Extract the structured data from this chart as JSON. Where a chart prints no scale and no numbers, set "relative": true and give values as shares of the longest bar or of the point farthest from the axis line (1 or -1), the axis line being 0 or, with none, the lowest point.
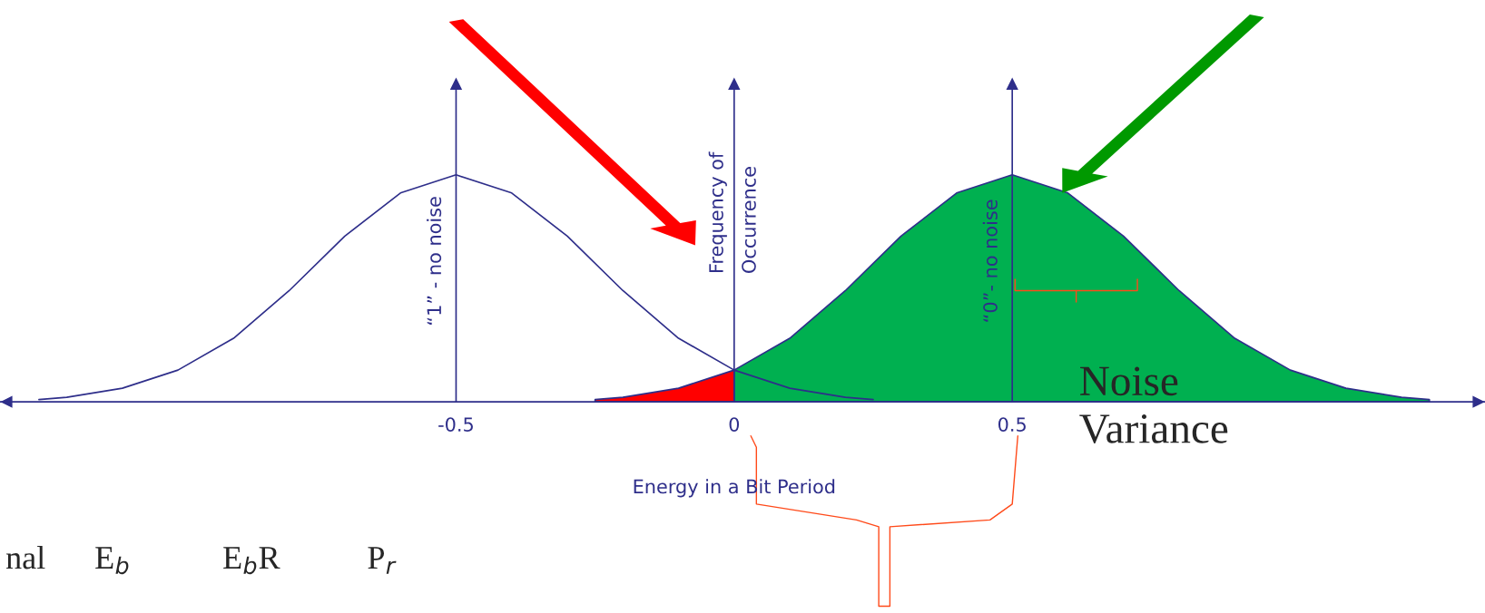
{
  "chart_data": {
    "type": "line",
    "relative": true,
    "xlabel": "Energy in a Bit Period",
    "ylabel": "Frequency of Occurrence",
    "xlim": [
      -1.32,
      1.35
    ],
    "xticks": [
      -0.5,
      0,
      0.5
    ],
    "grid": false,
    "marker": "none",
    "line_style": "solid",
    "series": [
      {
        "color": "#2e2e8a",
        "x": [
          -1.25,
          -1.2,
          -1.1,
          -1.0,
          -0.9,
          -0.8,
          -0.7,
          -0.6,
          -0.5,
          -0.4,
          -0.3,
          -0.2,
          -0.1,
          0,
          0.1,
          0.2,
          0.25
        ],
        "values": [
          0.01,
          0.02,
          0.06,
          0.14,
          0.28,
          0.49,
          0.73,
          0.92,
          1,
          0.92,
          0.73,
          0.49,
          0.28,
          0.14,
          0.06,
          0.02,
          0.01
        ]
      },
      {
        "type": "area",
        "color": "#ff0000",
        "x": [
          -0.25,
          -0.2,
          -0.1,
          0
        ],
        "values": [
          0.01,
          0.02,
          0.06,
          0.14
        ]
      },
      {
        "type": "area",
        "color": "#00b050",
        "x": [
          0,
          0.1,
          0.2,
          0.3,
          0.4,
          0.5,
          0.6,
          0.7,
          0.8,
          0.9,
          1.0,
          1.1,
          1.2,
          1.25
        ],
        "values": [
          0.14,
          0.28,
          0.49,
          0.73,
          0.92,
          1,
          0.92,
          0.73,
          0.49,
          0.28,
          0.14,
          0.06,
          0.02,
          0.01
        ]
      }
    ],
    "ref_lines": [
      {
        "axis": "x",
        "value": -0.5,
        "label": "“1” - no noise",
        "color": "#2e2e8a"
      },
      {
        "axis": "x",
        "value": 0,
        "label": null,
        "color": "#2e2e8a"
      },
      {
        "axis": "x",
        "value": 0.5,
        "label": "“0”- no noise",
        "color": "#2e2e8a"
      }
    ],
    "annotations": [
      "Noise Variance",
      "nal",
      "E$_{b}$",
      "E$_{b}$R",
      "P$_{r}$"
    ]
  }
}
